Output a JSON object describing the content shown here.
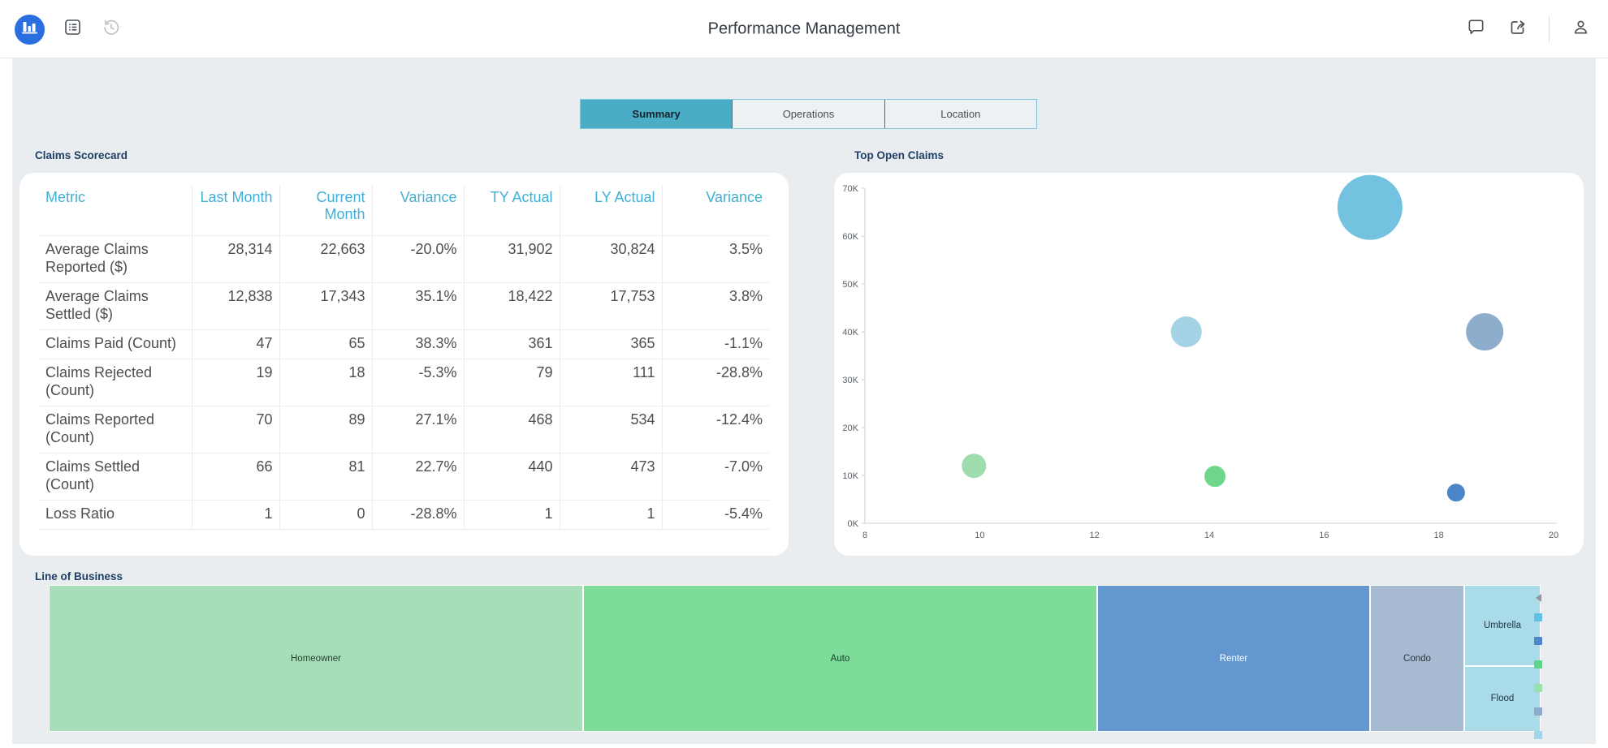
{
  "header": {
    "title": "Performance Management",
    "left_icons": [
      "bar-chart-logo",
      "report-list-icon",
      "history-icon"
    ],
    "right_icons": [
      "comment-icon",
      "share-icon",
      "user-icon"
    ]
  },
  "tabs": {
    "items": [
      {
        "label": "Summary",
        "selected": true
      },
      {
        "label": "Operations",
        "selected": false
      },
      {
        "label": "Location",
        "selected": false
      }
    ],
    "selected_bg": "#4bacc6"
  },
  "scorecard": {
    "section_title": "Claims Scorecard",
    "columns": [
      "Metric",
      "Last Month",
      "Current Month",
      "Variance",
      "TY Actual",
      "LY Actual",
      "Variance"
    ],
    "header_color": "#41b0d5",
    "rows": [
      {
        "metric": "Average Claims Reported ($)",
        "values": [
          "28,314",
          "22,663",
          "-20.0%",
          "31,902",
          "30,824",
          "3.5%"
        ]
      },
      {
        "metric": "Average Claims Settled ($)",
        "values": [
          "12,838",
          "17,343",
          "35.1%",
          "18,422",
          "17,753",
          "3.8%"
        ]
      },
      {
        "metric": "Claims Paid (Count)",
        "values": [
          "47",
          "65",
          "38.3%",
          "361",
          "365",
          "-1.1%"
        ]
      },
      {
        "metric": "Claims Rejected (Count)",
        "values": [
          "19",
          "18",
          "-5.3%",
          "79",
          "111",
          "-28.8%"
        ]
      },
      {
        "metric": "Claims Reported (Count)",
        "values": [
          "70",
          "89",
          "27.1%",
          "468",
          "534",
          "-12.4%"
        ]
      },
      {
        "metric": "Claims Settled (Count)",
        "values": [
          "66",
          "81",
          "22.7%",
          "440",
          "473",
          "-7.0%"
        ]
      },
      {
        "metric": "Loss Ratio",
        "values": [
          "1",
          "0",
          "-28.8%",
          "1",
          "1",
          "-5.4%"
        ]
      }
    ]
  },
  "chart_data": [
    {
      "type": "scatter",
      "title": "Top Open Claims",
      "xlabel": "",
      "ylabel": "",
      "xlim": [
        8,
        20
      ],
      "ylim": [
        0,
        70000
      ],
      "x_ticks": [
        8,
        10,
        12,
        14,
        16,
        18,
        20
      ],
      "y_ticks": [
        0,
        10000,
        20000,
        30000,
        40000,
        50000,
        60000,
        70000
      ],
      "y_tick_labels": [
        "0K",
        "10K",
        "20K",
        "30K",
        "40K",
        "50K",
        "60K",
        "70K"
      ],
      "grid": false,
      "legend": "none",
      "points": [
        {
          "x": 16.8,
          "y": 66000,
          "r": 40,
          "color": "#73c3e0"
        },
        {
          "x": 13.6,
          "y": 40000,
          "r": 19,
          "color": "#a3d3e5"
        },
        {
          "x": 18.8,
          "y": 40000,
          "r": 23,
          "color": "#8eadcd"
        },
        {
          "x": 9.9,
          "y": 12000,
          "r": 15,
          "color": "#9fdcae"
        },
        {
          "x": 14.1,
          "y": 9800,
          "r": 13,
          "color": "#6ed78a"
        },
        {
          "x": 18.3,
          "y": 6400,
          "r": 11,
          "color": "#4b87c8"
        }
      ]
    },
    {
      "type": "treemap",
      "title": "Line of Business",
      "cells": [
        {
          "label": "Homeowner",
          "x": 0,
          "w": 35.82,
          "y": 0,
          "h": 100,
          "color": "#a5deb9",
          "text": "#27412f"
        },
        {
          "label": "Auto",
          "x": 35.82,
          "w": 34.46,
          "y": 0,
          "h": 100,
          "color": "#7edc9b",
          "text": "#1d3a26"
        },
        {
          "label": "Renter",
          "x": 70.28,
          "w": 18.29,
          "y": 0,
          "h": 100,
          "color": "#6397d0",
          "text": "#ffffff"
        },
        {
          "label": "Condo",
          "x": 88.57,
          "w": 6.31,
          "y": 0,
          "h": 100,
          "color": "#a6bbd1",
          "text": "#2b3540"
        },
        {
          "label": "Umbrella",
          "x": 94.88,
          "w": 5.12,
          "y": 0,
          "h": 55,
          "color": "#a9dbe9",
          "text": "#1f3540"
        },
        {
          "label": "Flood",
          "x": 94.88,
          "w": 5.12,
          "y": 55,
          "h": 45,
          "color": "#a9dbe9",
          "text": "#1f3540"
        }
      ],
      "legend_colors": [
        "#5fc0e1",
        "#4e87c9",
        "#5fd687",
        "#9bdfad",
        "#8fa9c9",
        "#9fd6e6"
      ]
    }
  ]
}
